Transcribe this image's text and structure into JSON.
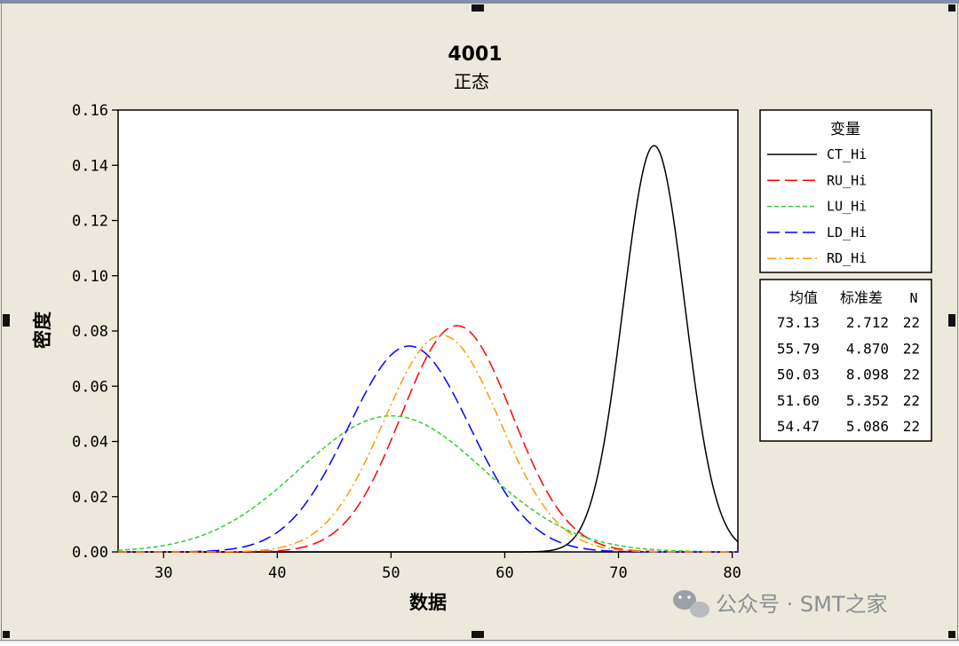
{
  "colors": {
    "window_bg": "#ece9dc",
    "plot_bg": "#ffffff",
    "border": "#000000",
    "handle": "#111111"
  },
  "chart_data": {
    "type": "line",
    "title": "4001",
    "subtitle": "正态",
    "xlabel": "数据",
    "ylabel": "密度",
    "xlim": [
      26,
      80.5
    ],
    "ylim": [
      0,
      0.16
    ],
    "xticks": [
      "30",
      "40",
      "50",
      "60",
      "70",
      "80"
    ],
    "yticks": [
      "0.00",
      "0.02",
      "0.04",
      "0.06",
      "0.08",
      "0.10",
      "0.12",
      "0.14",
      "0.16"
    ],
    "grid": false,
    "legend": {
      "title": "变量",
      "placement": "right",
      "stats_headers": [
        "均值",
        "标准差",
        "N"
      ]
    },
    "series": [
      {
        "name": "CT_Hi",
        "mean": 73.13,
        "stdev": 2.712,
        "n": 22,
        "mean_label": "73.13",
        "stdev_label": "2.712",
        "n_label": "22",
        "color": "#000000",
        "dash": "solid"
      },
      {
        "name": "RU_Hi",
        "mean": 55.79,
        "stdev": 4.87,
        "n": 22,
        "mean_label": "55.79",
        "stdev_label": "4.870",
        "n_label": "22",
        "color": "#ff0000",
        "dash": "long-dash"
      },
      {
        "name": "LU_Hi",
        "mean": 50.03,
        "stdev": 8.098,
        "n": 22,
        "mean_label": "50.03",
        "stdev_label": "8.098",
        "n_label": "22",
        "color": "#33cc33",
        "dash": "short-dash"
      },
      {
        "name": "LD_Hi",
        "mean": 51.6,
        "stdev": 5.352,
        "n": 22,
        "mean_label": "51.60",
        "stdev_label": "5.352",
        "n_label": "22",
        "color": "#0000ff",
        "dash": "long-dash"
      },
      {
        "name": "RD_Hi",
        "mean": 54.47,
        "stdev": 5.086,
        "n": 22,
        "mean_label": "54.47",
        "stdev_label": "5.086",
        "n_label": "22",
        "color": "#ff9900",
        "dash": "dash-dot"
      }
    ]
  },
  "watermark": "公众号 · SMT之家"
}
